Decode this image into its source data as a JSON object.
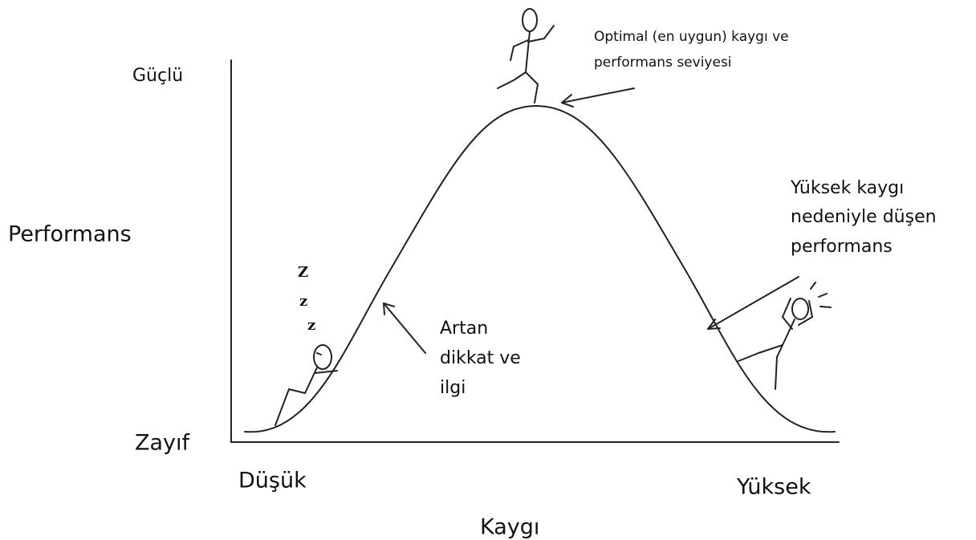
{
  "axes": {
    "y_top": "Güçlü",
    "y_label": "Performans",
    "y_bottom": "Zayıf",
    "x_left": "Düşük",
    "x_right": "Yüksek",
    "x_label": "Kaygı"
  },
  "annotations": {
    "optimal": [
      "Optimal (en uygun) kaygı ve",
      "performans seviyesi"
    ],
    "high": [
      "Yüksek kaygı",
      "nedeniyle düşen",
      "performans"
    ],
    "rising": [
      "Artan",
      "dikkat ve",
      "ilgi"
    ],
    "sleep": [
      "Z",
      "z",
      "z"
    ]
  }
}
